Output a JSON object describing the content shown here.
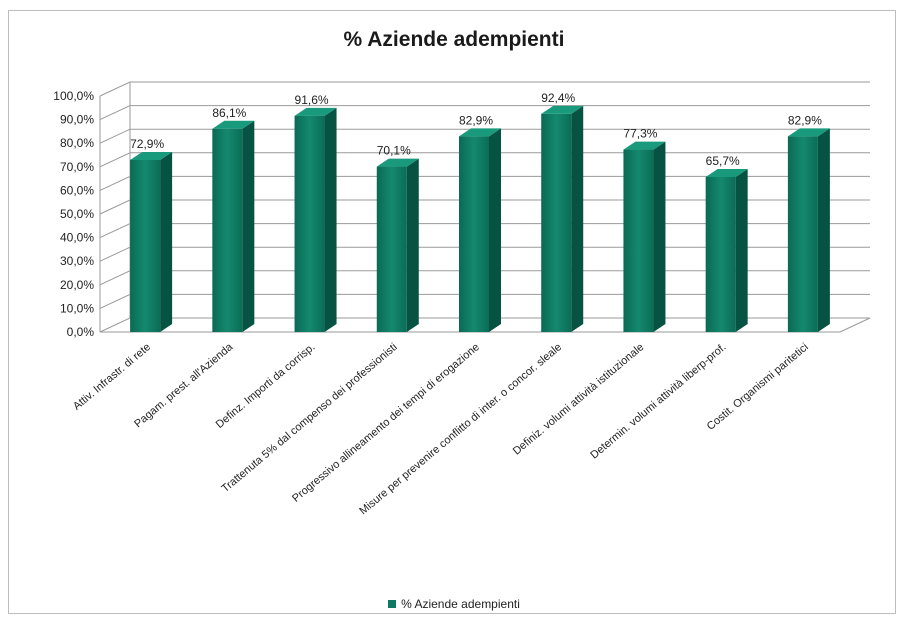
{
  "chart_data": {
    "type": "bar",
    "title": "% Aziende adempienti",
    "categories": [
      "Attiv. Infrastr. di rete",
      "Pagam. prest. all'Azienda",
      "Definz. Importi da corrisp.",
      "Trattenuta 5% dal compenso dei professionisti",
      "Progressivo allineamento dei tempi di erogazione",
      "Misure per prevenire conflitto di inter. o concor. sleale",
      "Definiz. volumi attività istituzionale",
      "Determin. volumi attività liberp-prof.",
      "Costit. Organismi paritetici"
    ],
    "series": [
      {
        "name": "% Aziende adempienti",
        "values": [
          72.9,
          86.1,
          91.6,
          70.1,
          82.9,
          92.4,
          77.3,
          65.7,
          82.9
        ]
      }
    ],
    "data_labels": [
      "72,9%",
      "86,1%",
      "91,6%",
      "70,1%",
      "82,9%",
      "92,4%",
      "77,3%",
      "65,7%",
      "82,9%"
    ],
    "y_ticks": [
      "0,0%",
      "10,0%",
      "20,0%",
      "30,0%",
      "40,0%",
      "50,0%",
      "60,0%",
      "70,0%",
      "80,0%",
      "90,0%",
      "100,0%"
    ],
    "ylim": [
      0,
      100
    ],
    "grid": true,
    "legend_position": "bottom",
    "bar_color": "#0f7a62"
  }
}
